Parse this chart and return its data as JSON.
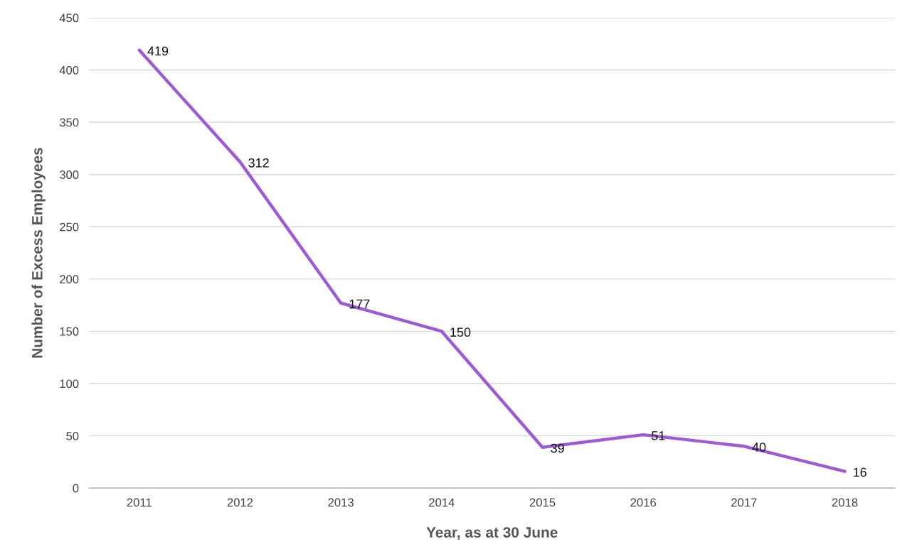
{
  "chart_data": {
    "type": "line",
    "xlabel": "Year, as at 30 June",
    "ylabel": "Number of Excess Employees",
    "categories": [
      "2011",
      "2012",
      "2013",
      "2014",
      "2015",
      "2016",
      "2017",
      "2018"
    ],
    "series": [
      {
        "color": "#9e5ad6",
        "values": [
          419,
          312,
          177,
          150,
          39,
          51,
          40,
          16
        ]
      }
    ],
    "ylim": [
      0,
      450
    ],
    "yticks": [
      0,
      50,
      100,
      150,
      200,
      250,
      300,
      350,
      400,
      450
    ],
    "grid": "y",
    "data_labels": true,
    "marker": "none",
    "line_style": "solid"
  }
}
